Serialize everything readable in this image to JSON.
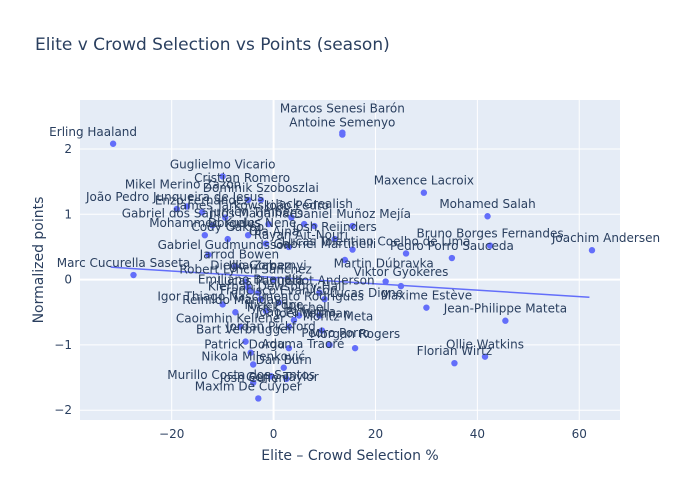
{
  "chart_data": {
    "type": "scatter",
    "title": "Elite v Crowd Selection vs Points (season)",
    "xlabel": "Elite – Crowd Selection %",
    "ylabel": "Normalized points",
    "xlim": [
      -38,
      68
    ],
    "ylim": [
      -2.15,
      2.75
    ],
    "xticks": [
      -20,
      0,
      20,
      40,
      60
    ],
    "xtick_labels": [
      "−20",
      "0",
      "20",
      "40",
      "60"
    ],
    "yticks": [
      -2,
      -1,
      0,
      1,
      2
    ],
    "ytick_labels": [
      "−2",
      "−1",
      "0",
      "1",
      "2"
    ],
    "grid": true,
    "trend_line": {
      "x": [
        -32,
        62
      ],
      "y": [
        0.19,
        -0.27
      ]
    },
    "colors": {
      "plot_bg": "#e5ecf6",
      "grid": "#ffffff",
      "marker": "#636efa",
      "text": "#2a3f5f"
    },
    "points": [
      {
        "label": "Erling Haaland",
        "x": -31.5,
        "y": 2.08
      },
      {
        "label": "Marc Cucurella Saseta",
        "x": -27.5,
        "y": 0.07
      },
      {
        "label": "João Pedro Junqueira de Jesus",
        "x": -19.0,
        "y": 1.08
      },
      {
        "label": "Mikel Merino Zazon",
        "x": -17.0,
        "y": 1.12
      },
      {
        "label": "Enzo Fernández",
        "x": -14.0,
        "y": 1.03
      },
      {
        "label": "Gabriel dos Santos Magalhães",
        "x": -12.0,
        "y": 0.83
      },
      {
        "label": "Mohammed Kudus",
        "x": -13.5,
        "y": 0.68
      },
      {
        "label": "Gabriel Gudmundsson",
        "x": -12.8,
        "y": 0.38
      },
      {
        "label": "Igor Thiago Nascimento Rodrigues",
        "x": -10.0,
        "y": -0.38
      },
      {
        "label": "Guglielmo Vicario",
        "x": -10.0,
        "y": 1.58
      },
      {
        "label": "James Tarkowski",
        "x": -9.5,
        "y": 0.95
      },
      {
        "label": "Cody Gakpo",
        "x": -9.0,
        "y": 0.62
      },
      {
        "label": "Jarrod Bowen",
        "x": -7.5,
        "y": 0.2
      },
      {
        "label": "Caoimhin Kelleher",
        "x": -6.5,
        "y": -0.72
      },
      {
        "label": "Reinildo Mandava",
        "x": -7.5,
        "y": -0.5
      },
      {
        "label": "Bart Verbruggen",
        "x": -5.5,
        "y": -0.95
      },
      {
        "label": "Patrick Dorgu",
        "x": -4.5,
        "y": -1.12
      },
      {
        "label": "Nikola Milenković",
        "x": -4.0,
        "y": -1.3
      },
      {
        "label": "Murillo Costa dos Santos",
        "x": -4.0,
        "y": -1.58
      },
      {
        "label": "Maxim De Cuyper",
        "x": -3.0,
        "y": -1.82
      },
      {
        "label": "Cristian Romero",
        "x": -5.0,
        "y": 1.22
      },
      {
        "label": "Dorgeles Nene",
        "x": -5.0,
        "y": 0.68
      },
      {
        "label": "Diego Gomez",
        "x": -4.5,
        "y": -0.18
      },
      {
        "label": "Robert Lynch Sánchez",
        "x": -5.5,
        "y": -0.03
      },
      {
        "label": "Emiliano Buendía",
        "x": -5.0,
        "y": -0.12
      },
      {
        "label": "Kiernan Dewsbury-Hall",
        "x": -3.0,
        "y": -0.2
      },
      {
        "label": "Nick Pope",
        "x": -1.5,
        "y": -0.48
      },
      {
        "label": "Illia Zabarnyi",
        "x": 0.0,
        "y": 0.0
      },
      {
        "label": "Jurriën Timber",
        "x": -1.0,
        "y": 0.85
      },
      {
        "label": "Dominik Szoboszlai",
        "x": -2.5,
        "y": 1.22
      },
      {
        "label": "Ola Aina",
        "x": -1.5,
        "y": 0.55
      },
      {
        "label": "Lucas Paquetá",
        "x": -2.5,
        "y": -0.3
      },
      {
        "label": "Jordan Pickford",
        "x": 3.0,
        "y": -0.72
      },
      {
        "label": "João Palhinha",
        "x": 4.0,
        "y": -0.62
      },
      {
        "label": "Joel Veltman",
        "x": 5.0,
        "y": -0.55
      },
      {
        "label": "Josh Cullen",
        "x": -0.5,
        "y": -1.48
      },
      {
        "label": "Adama Traoré",
        "x": 3.0,
        "y": -1.05
      },
      {
        "label": "Gerry Taylor",
        "x": 2.5,
        "y": -1.52
      },
      {
        "label": "Dan Burn",
        "x": 2.0,
        "y": -1.35
      },
      {
        "label": "Jack Grealish",
        "x": 6.0,
        "y": 0.85
      },
      {
        "label": "Erling Silva",
        "x": 8.0,
        "y": 0.82
      },
      {
        "label": "João Pedro",
        "x": 3.5,
        "y": 0.95
      },
      {
        "label": "Rayan Aït-Nouri",
        "x": 3.0,
        "y": 0.5
      },
      {
        "label": "Francisco Evanilson",
        "x": 1.0,
        "y": -0.35
      },
      {
        "label": "Elliot Anderson",
        "x": 9.0,
        "y": -0.2
      },
      {
        "label": "Lucas Digne",
        "x": 10.0,
        "y": -0.3
      },
      {
        "label": "Moritz Meta",
        "x": 9.5,
        "y": -0.78
      },
      {
        "label": "Morgan Rogers",
        "x": 16.0,
        "y": -1.05
      },
      {
        "label": "Pedro Porro",
        "x": 11.0,
        "y": -1.0
      },
      {
        "label": "Tyrick Mitchell",
        "x": 9.0,
        "y": -0.55
      },
      {
        "label": "Antoine Semenyo",
        "x": 13.5,
        "y": 2.22
      },
      {
        "label": "Marcos Senesi Barón",
        "x": 13.5,
        "y": 2.25
      },
      {
        "label": "Daniel Muñoz Mejía",
        "x": 15.5,
        "y": 0.82
      },
      {
        "label": "Josh Reijnders",
        "x": 12.0,
        "y": 0.62
      },
      {
        "label": "Bruno Guimarães",
        "x": 15.5,
        "y": 0.46
      },
      {
        "label": "Gabriel Martinelli",
        "x": 14.0,
        "y": 0.3
      },
      {
        "label": "Martin Dúbravka",
        "x": 22.0,
        "y": -0.03
      },
      {
        "label": "Viktor Gyökeres",
        "x": 25.0,
        "y": -0.1
      },
      {
        "label": "Maxime Estève",
        "x": 30.0,
        "y": -0.43
      },
      {
        "label": "Lucas Tolentino Coelho de Lima",
        "x": 26.0,
        "y": 0.4
      },
      {
        "label": "Pedro Porro Sauceda",
        "x": 35.0,
        "y": 0.33
      },
      {
        "label": "Maxence Lacroix",
        "x": 29.5,
        "y": 1.33
      },
      {
        "label": "Mohamed Salah",
        "x": 42.0,
        "y": 0.97
      },
      {
        "label": "Bruno Borges Fernandes",
        "x": 42.5,
        "y": 0.52
      },
      {
        "label": "Joachim Andersen",
        "x": 62.5,
        "y": 0.45
      },
      {
        "label": "Jean-Philippe Mateta",
        "x": 45.5,
        "y": -0.63
      },
      {
        "label": "Ollie Watkins",
        "x": 41.5,
        "y": -1.18
      },
      {
        "label": "Florian Wirtz",
        "x": 35.5,
        "y": -1.28
      }
    ],
    "labeled_points": [
      {
        "text": "Erling Haaland",
        "x": -31.5,
        "y": 2.08,
        "dx": -20,
        "dy": -8
      },
      {
        "text": "Marcos Senesi Barón",
        "x": 13.5,
        "y": 2.25,
        "dx": 0,
        "dy": -20
      },
      {
        "text": "Antoine Semenyo",
        "x": 13.5,
        "y": 2.22,
        "dx": 0,
        "dy": -8
      },
      {
        "text": "Guglielmo Vicario",
        "x": -10.0,
        "y": 1.58,
        "dx": 0,
        "dy": -8
      },
      {
        "text": "Cristian Romero",
        "x": -5.0,
        "y": 1.22,
        "dx": -6,
        "dy": -18
      },
      {
        "text": "Maxence Lacroix",
        "x": 29.5,
        "y": 1.33,
        "dx": 0,
        "dy": -8
      },
      {
        "text": "João Pedro Junqueira de Jesus",
        "x": -19.0,
        "y": 1.08,
        "dx": -2,
        "dy": -8
      },
      {
        "text": "Dominik Szoboszlai",
        "x": -2.5,
        "y": 1.22,
        "dx": 0,
        "dy": -8
      },
      {
        "text": "Mikel Merino Zazon",
        "x": -17.0,
        "y": 1.12,
        "dx": -4,
        "dy": -18
      },
      {
        "text": "Enzo Fernández",
        "x": -14.0,
        "y": 1.03,
        "dx": 0,
        "dy": -8
      },
      {
        "text": "Mohamed Salah",
        "x": 42.0,
        "y": 0.97,
        "dx": 0,
        "dy": -8
      },
      {
        "text": "James Tarkowski",
        "x": -9.5,
        "y": 0.95,
        "dx": 0,
        "dy": -8
      },
      {
        "text": "João Pedro",
        "x": 3.5,
        "y": 0.95,
        "dx": 6,
        "dy": -8
      },
      {
        "text": "Jack Grealish",
        "x": 6.0,
        "y": 0.85,
        "dx": 10,
        "dy": -16
      },
      {
        "text": "Daniel Muñoz Mejía",
        "x": 15.5,
        "y": 0.82,
        "dx": 0,
        "dy": -8
      },
      {
        "text": "Gabriel dos Santos Magalhães",
        "x": -12.0,
        "y": 0.83,
        "dx": 0,
        "dy": -8
      },
      {
        "text": "Jurriën Timber",
        "x": -1.0,
        "y": 0.85,
        "dx": -16,
        "dy": -8
      },
      {
        "text": "Josh Reijnders",
        "x": 12.0,
        "y": 0.62,
        "dx": 0,
        "dy": -8
      },
      {
        "text": "Dorgeles Nene",
        "x": -5.0,
        "y": 0.68,
        "dx": 4,
        "dy": -8
      },
      {
        "text": "Ola Aina",
        "x": -1.5,
        "y": 0.55,
        "dx": 8,
        "dy": -8
      },
      {
        "text": "Mohammed Kudus",
        "x": -13.5,
        "y": 0.68,
        "dx": 0,
        "dy": -8
      },
      {
        "text": "Cody Gakpo",
        "x": -9.0,
        "y": 0.62,
        "dx": 0,
        "dy": -8
      },
      {
        "text": "Bruno Borges Fernandes",
        "x": 42.5,
        "y": 0.52,
        "dx": 0,
        "dy": -8
      },
      {
        "text": "Joachim Andersen",
        "x": 62.5,
        "y": 0.45,
        "dx": 14,
        "dy": -8
      },
      {
        "text": "Rayan Aït-Nouri",
        "x": 3.0,
        "y": 0.5,
        "dx": 12,
        "dy": -8
      },
      {
        "text": "Gabriel Martinelli",
        "x": 14.0,
        "y": 0.3,
        "dx": -20,
        "dy": -12
      },
      {
        "text": "Lucas Tolentino Coelho de Lima",
        "x": 26.0,
        "y": 0.4,
        "dx": -30,
        "dy": -8
      },
      {
        "text": "Pedro Porro Sauceda",
        "x": 35.0,
        "y": 0.33,
        "dx": 0,
        "dy": -8
      },
      {
        "text": "Gabriel Gudmundsson",
        "x": -12.8,
        "y": 0.38,
        "dx": 16,
        "dy": -6
      },
      {
        "text": "Jarrod Bowen",
        "x": -7.5,
        "y": 0.2,
        "dx": 4,
        "dy": -8
      },
      {
        "text": "Marc Cucurella Saseta",
        "x": -27.5,
        "y": 0.07,
        "dx": -10,
        "dy": -8
      },
      {
        "text": "Martin Dúbravka",
        "x": 22.0,
        "y": -0.03,
        "dx": -2,
        "dy": -14
      },
      {
        "text": "Illia Zabarnyi",
        "x": 0.0,
        "y": 0.0,
        "dx": -6,
        "dy": -10
      },
      {
        "text": "Diego Gomez",
        "x": -4.5,
        "y": -0.18,
        "dx": 0,
        "dy": -22
      },
      {
        "text": "Viktor Gyökeres",
        "x": 25.0,
        "y": -0.1,
        "dx": 0,
        "dy": -10
      },
      {
        "text": "Robert Lynch Sánchez",
        "x": -5.5,
        "y": -0.03,
        "dx": 0,
        "dy": -8
      },
      {
        "text": "Emiliano Buendía",
        "x": -5.0,
        "y": -0.12,
        "dx": 2,
        "dy": -4
      },
      {
        "text": "Kiernan Dewsbury-Hall",
        "x": -3.0,
        "y": -0.2,
        "dx": 18,
        "dy": -2
      },
      {
        "text": "Elliot Anderson",
        "x": 9.0,
        "y": -0.2,
        "dx": 10,
        "dy": -8
      },
      {
        "text": "Lucas Digne",
        "x": 10.0,
        "y": -0.3,
        "dx": 42,
        "dy": -2
      },
      {
        "text": "Maxime Estève",
        "x": 30.0,
        "y": -0.43,
        "dx": 0,
        "dy": -8
      },
      {
        "text": "Francisco Evanilson",
        "x": 1.0,
        "y": -0.35,
        "dx": 0,
        "dy": -8
      },
      {
        "text": "Lucas Paquetá",
        "x": -2.5,
        "y": -0.3,
        "dx": 0,
        "dy": -14
      },
      {
        "text": "Nick Pope",
        "x": -1.5,
        "y": -0.48,
        "dx": 8,
        "dy": -2
      },
      {
        "text": "Igor Thiago Nascimento Rodrigues",
        "x": -10.0,
        "y": -0.38,
        "dx": 38,
        "dy": -4
      },
      {
        "text": "Jean-Philippe Mateta",
        "x": 45.5,
        "y": -0.63,
        "dx": 0,
        "dy": -8
      },
      {
        "text": "Reinildo Mandava",
        "x": -7.5,
        "y": -0.5,
        "dx": 0,
        "dy": -8
      },
      {
        "text": "Tyrick Mitchell",
        "x": 9.0,
        "y": -0.55,
        "dx": -32,
        "dy": -4
      },
      {
        "text": "Caoimhin Kelleher",
        "x": -6.5,
        "y": -0.72,
        "dx": -10,
        "dy": -4
      },
      {
        "text": "Moritz Meta",
        "x": 9.5,
        "y": -0.78,
        "dx": 16,
        "dy": -10
      },
      {
        "text": "Jordan Pickford",
        "x": 3.0,
        "y": -0.72,
        "dx": -18,
        "dy": 4
      },
      {
        "text": "João Palhinha",
        "x": 4.0,
        "y": -0.62,
        "dx": 2,
        "dy": -4
      },
      {
        "text": "Joel Veltman",
        "x": 5.0,
        "y": -0.55,
        "dx": 14,
        "dy": 2
      },
      {
        "text": "Adama Traoré",
        "x": 3.0,
        "y": -1.05,
        "dx": 14,
        "dy": 0
      },
      {
        "text": "Pedro Porro",
        "x": 11.0,
        "y": -1.0,
        "dx": 6,
        "dy": -8
      },
      {
        "text": "Morgan Rogers",
        "x": 16.0,
        "y": -1.05,
        "dx": 0,
        "dy": -10
      },
      {
        "text": "Bart Verbruggen",
        "x": -5.5,
        "y": -0.95,
        "dx": 0,
        "dy": -8
      },
      {
        "text": "Ollie Watkins",
        "x": 41.5,
        "y": -1.18,
        "dx": 0,
        "dy": -8
      },
      {
        "text": "Florian Wirtz",
        "x": 35.5,
        "y": -1.28,
        "dx": 0,
        "dy": -8
      },
      {
        "text": "Patrick Dorgu",
        "x": -4.5,
        "y": -1.12,
        "dx": -6,
        "dy": -4
      },
      {
        "text": "Nikola Milenković",
        "x": -4.0,
        "y": -1.3,
        "dx": 0,
        "dy": -4
      },
      {
        "text": "Dan Burn",
        "x": 2.0,
        "y": -1.35,
        "dx": 0,
        "dy": -4
      },
      {
        "text": "Josh Cullen",
        "x": -0.5,
        "y": -1.48,
        "dx": -18,
        "dy": 6
      },
      {
        "text": "Gerry Taylor",
        "x": 2.5,
        "y": -1.52,
        "dx": -4,
        "dy": 2
      },
      {
        "text": "Murillo Costa dos Santos",
        "x": -4.0,
        "y": -1.58,
        "dx": -12,
        "dy": -4
      },
      {
        "text": "Maxim De Cuyper",
        "x": -3.0,
        "y": -1.82,
        "dx": -10,
        "dy": -8
      }
    ]
  }
}
